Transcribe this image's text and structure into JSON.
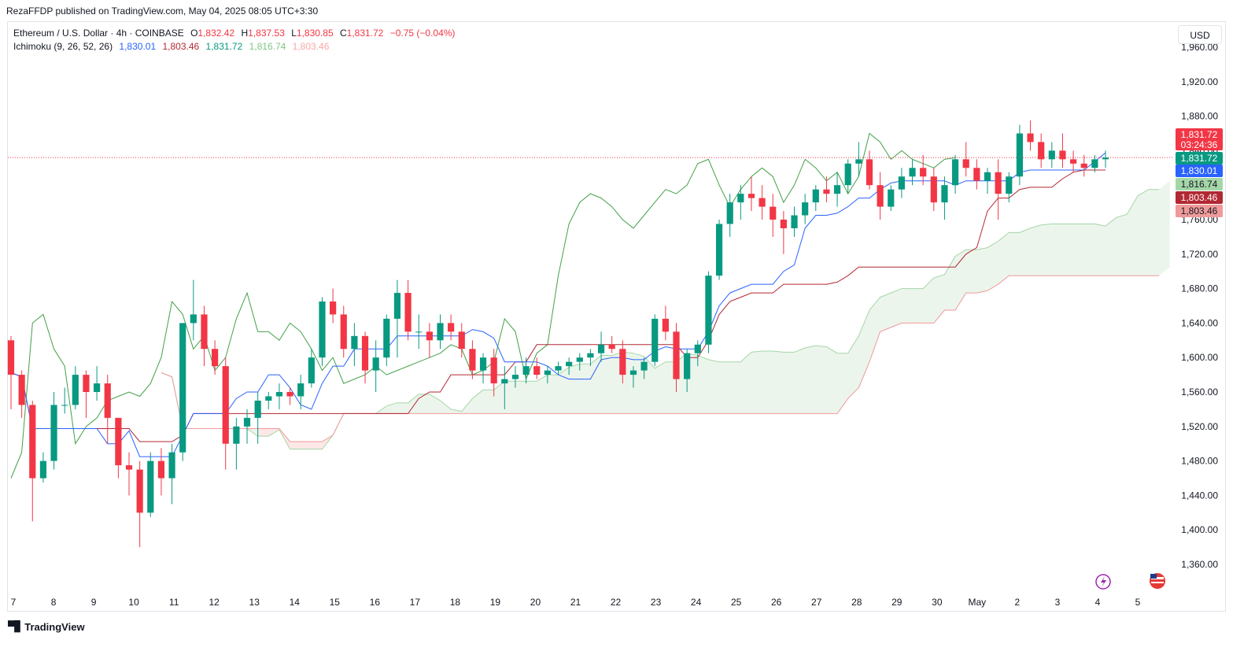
{
  "publish_line": "RezaFFDP published on TradingView.com, May 04, 2025 08:05 UTC+3:30",
  "legend": {
    "symbol": "Ethereum / U.S. Dollar · 4h · COINBASE",
    "open_label": "O",
    "open": "1,832.42",
    "high_label": "H",
    "high": "1,837.53",
    "low_label": "L",
    "low": "1,830.85",
    "close_label": "C",
    "close": "1,831.72",
    "change": "−0.75 (−0.04%)",
    "indicator": "Ichimoku (9, 26, 52, 26)",
    "ind_values": [
      "1,830.01",
      "1,803.46",
      "1,831.72",
      "1,816.74",
      "1,803.46"
    ]
  },
  "currency_button": "USD",
  "footer_brand": "TradingView",
  "colors": {
    "up": "#089981",
    "down": "#f23645",
    "tenkan": "#2962ff",
    "kijun": "#b22833",
    "chikou": "#43a047",
    "spanA": "#a5d6a7",
    "spanB": "#ef9a9a",
    "cloud_up": "rgba(67,160,71,0.10)",
    "cloud_down": "rgba(244,67,54,0.12)"
  },
  "chart_data": {
    "type": "candlestick",
    "y_axis_ticks": [
      "1,360.00",
      "1,400.00",
      "1,440.00",
      "1,480.00",
      "1,520.00",
      "1,560.00",
      "1,600.00",
      "1,640.00",
      "1,680.00",
      "1,720.00",
      "1,760.00",
      "1,800.00",
      "1,840.00",
      "1,880.00",
      "1,920.00",
      "1,960.00"
    ],
    "x_axis_labels": [
      "7",
      "8",
      "9",
      "10",
      "11",
      "12",
      "13",
      "14",
      "15",
      "16",
      "17",
      "18",
      "19",
      "20",
      "21",
      "22",
      "23",
      "24",
      "25",
      "26",
      "27",
      "28",
      "29",
      "30",
      "May",
      "2",
      "3",
      "4",
      "5"
    ],
    "ylim": [
      1340,
      1975
    ],
    "price_labels": [
      {
        "text": "1,831.72",
        "sub": "03:24:36",
        "color": "#f23645"
      },
      {
        "text": "1,831.72",
        "color": "#089981"
      },
      {
        "text": "1,830.01",
        "color": "#2962ff"
      },
      {
        "text": "1,816.74",
        "color": "#a5d6a7"
      },
      {
        "text": "1,803.46",
        "color": "#b22833"
      },
      {
        "text": "1,803.46",
        "color": "#ef9a9a"
      }
    ],
    "candles": [
      [
        1620,
        1625,
        1540,
        1580
      ],
      [
        1580,
        1585,
        1530,
        1545
      ],
      [
        1545,
        1550,
        1410,
        1460
      ],
      [
        1460,
        1490,
        1455,
        1480
      ],
      [
        1480,
        1560,
        1470,
        1545
      ],
      [
        1545,
        1565,
        1535,
        1545
      ],
      [
        1545,
        1590,
        1540,
        1580
      ],
      [
        1580,
        1585,
        1530,
        1560
      ],
      [
        1560,
        1590,
        1550,
        1570
      ],
      [
        1570,
        1580,
        1500,
        1530
      ],
      [
        1530,
        1530,
        1460,
        1475
      ],
      [
        1475,
        1490,
        1440,
        1470
      ],
      [
        1470,
        1480,
        1380,
        1420
      ],
      [
        1420,
        1490,
        1415,
        1480
      ],
      [
        1480,
        1495,
        1440,
        1460
      ],
      [
        1460,
        1500,
        1430,
        1490
      ],
      [
        1490,
        1640,
        1480,
        1640
      ],
      [
        1640,
        1690,
        1620,
        1650
      ],
      [
        1650,
        1660,
        1590,
        1610
      ],
      [
        1610,
        1620,
        1580,
        1590
      ],
      [
        1590,
        1600,
        1470,
        1500
      ],
      [
        1500,
        1530,
        1470,
        1520
      ],
      [
        1520,
        1540,
        1500,
        1530
      ],
      [
        1530,
        1560,
        1500,
        1550
      ],
      [
        1550,
        1560,
        1540,
        1555
      ],
      [
        1555,
        1570,
        1540,
        1560
      ],
      [
        1560,
        1565,
        1545,
        1555
      ],
      [
        1555,
        1580,
        1540,
        1570
      ],
      [
        1570,
        1610,
        1565,
        1600
      ],
      [
        1600,
        1670,
        1590,
        1665
      ],
      [
        1665,
        1680,
        1640,
        1650
      ],
      [
        1650,
        1660,
        1600,
        1610
      ],
      [
        1610,
        1640,
        1590,
        1625
      ],
      [
        1625,
        1630,
        1570,
        1585
      ],
      [
        1585,
        1620,
        1560,
        1600
      ],
      [
        1600,
        1650,
        1590,
        1645
      ],
      [
        1645,
        1690,
        1600,
        1675
      ],
      [
        1675,
        1690,
        1620,
        1630
      ],
      [
        1630,
        1650,
        1610,
        1630
      ],
      [
        1630,
        1640,
        1600,
        1620
      ],
      [
        1620,
        1650,
        1610,
        1640
      ],
      [
        1640,
        1650,
        1620,
        1630
      ],
      [
        1630,
        1640,
        1600,
        1610
      ],
      [
        1610,
        1620,
        1575,
        1585
      ],
      [
        1585,
        1605,
        1570,
        1600
      ],
      [
        1600,
        1610,
        1555,
        1570
      ],
      [
        1570,
        1590,
        1540,
        1575
      ],
      [
        1575,
        1590,
        1565,
        1580
      ],
      [
        1580,
        1600,
        1570,
        1590
      ],
      [
        1590,
        1600,
        1575,
        1580
      ],
      [
        1580,
        1590,
        1570,
        1585
      ],
      [
        1585,
        1595,
        1580,
        1590
      ],
      [
        1590,
        1600,
        1580,
        1595
      ],
      [
        1595,
        1605,
        1585,
        1600
      ],
      [
        1600,
        1610,
        1590,
        1605
      ],
      [
        1605,
        1630,
        1595,
        1615
      ],
      [
        1615,
        1625,
        1605,
        1610
      ],
      [
        1610,
        1620,
        1570,
        1580
      ],
      [
        1580,
        1590,
        1565,
        1585
      ],
      [
        1585,
        1600,
        1575,
        1595
      ],
      [
        1595,
        1650,
        1590,
        1645
      ],
      [
        1645,
        1660,
        1620,
        1630
      ],
      [
        1630,
        1640,
        1560,
        1575
      ],
      [
        1575,
        1610,
        1560,
        1605
      ],
      [
        1605,
        1620,
        1590,
        1615
      ],
      [
        1615,
        1700,
        1605,
        1695
      ],
      [
        1695,
        1760,
        1690,
        1755
      ],
      [
        1755,
        1790,
        1740,
        1780
      ],
      [
        1780,
        1800,
        1760,
        1790
      ],
      [
        1790,
        1810,
        1770,
        1785
      ],
      [
        1785,
        1800,
        1760,
        1775
      ],
      [
        1775,
        1790,
        1740,
        1760
      ],
      [
        1760,
        1770,
        1720,
        1750
      ],
      [
        1750,
        1775,
        1740,
        1765
      ],
      [
        1765,
        1790,
        1755,
        1780
      ],
      [
        1780,
        1800,
        1770,
        1795
      ],
      [
        1795,
        1810,
        1780,
        1790
      ],
      [
        1790,
        1815,
        1775,
        1800
      ],
      [
        1800,
        1830,
        1790,
        1825
      ],
      [
        1825,
        1850,
        1810,
        1830
      ],
      [
        1830,
        1840,
        1795,
        1800
      ],
      [
        1800,
        1815,
        1760,
        1775
      ],
      [
        1775,
        1800,
        1770,
        1795
      ],
      [
        1795,
        1820,
        1785,
        1810
      ],
      [
        1810,
        1830,
        1800,
        1820
      ],
      [
        1820,
        1835,
        1800,
        1810
      ],
      [
        1810,
        1820,
        1770,
        1780
      ],
      [
        1780,
        1810,
        1760,
        1800
      ],
      [
        1800,
        1835,
        1790,
        1830
      ],
      [
        1830,
        1850,
        1810,
        1820
      ],
      [
        1820,
        1830,
        1795,
        1805
      ],
      [
        1805,
        1820,
        1790,
        1815
      ],
      [
        1815,
        1830,
        1760,
        1790
      ],
      [
        1790,
        1815,
        1780,
        1810
      ],
      [
        1810,
        1870,
        1800,
        1860
      ],
      [
        1860,
        1875,
        1840,
        1850
      ],
      [
        1850,
        1860,
        1820,
        1830
      ],
      [
        1830,
        1850,
        1820,
        1840
      ],
      [
        1840,
        1860,
        1820,
        1830
      ],
      [
        1830,
        1840,
        1815,
        1825
      ],
      [
        1825,
        1835,
        1810,
        1820
      ],
      [
        1820,
        1835,
        1815,
        1830
      ],
      [
        1830,
        1840,
        1820,
        1832
      ]
    ]
  }
}
